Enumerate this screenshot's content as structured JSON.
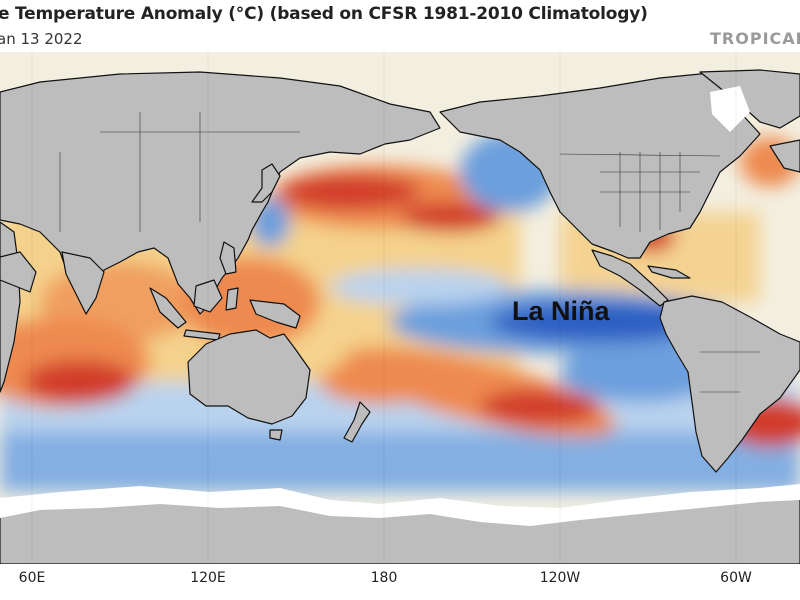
{
  "header": {
    "title": "e Temperature Anomaly (°C) (based on CFSR 1981-2010 Climatology)",
    "date": "an 13 2022",
    "brand": "TROPICAL"
  },
  "map": {
    "annotation": "La Niña",
    "x_ticks": [
      "60E",
      "120E",
      "180",
      "120W",
      "60W"
    ],
    "colors": {
      "land": "#bdbdbd",
      "sea_ice": "#ffffff",
      "ocean_neutral": "#f3efe0",
      "warm_light": "#f5cc7e",
      "warm": "#ee8a4f",
      "warm_strong": "#d13c2a",
      "cool_light": "#b9d3ee",
      "cool": "#6c9fdd",
      "cool_strong": "#2c5fc2",
      "coastline": "#111111"
    }
  }
}
